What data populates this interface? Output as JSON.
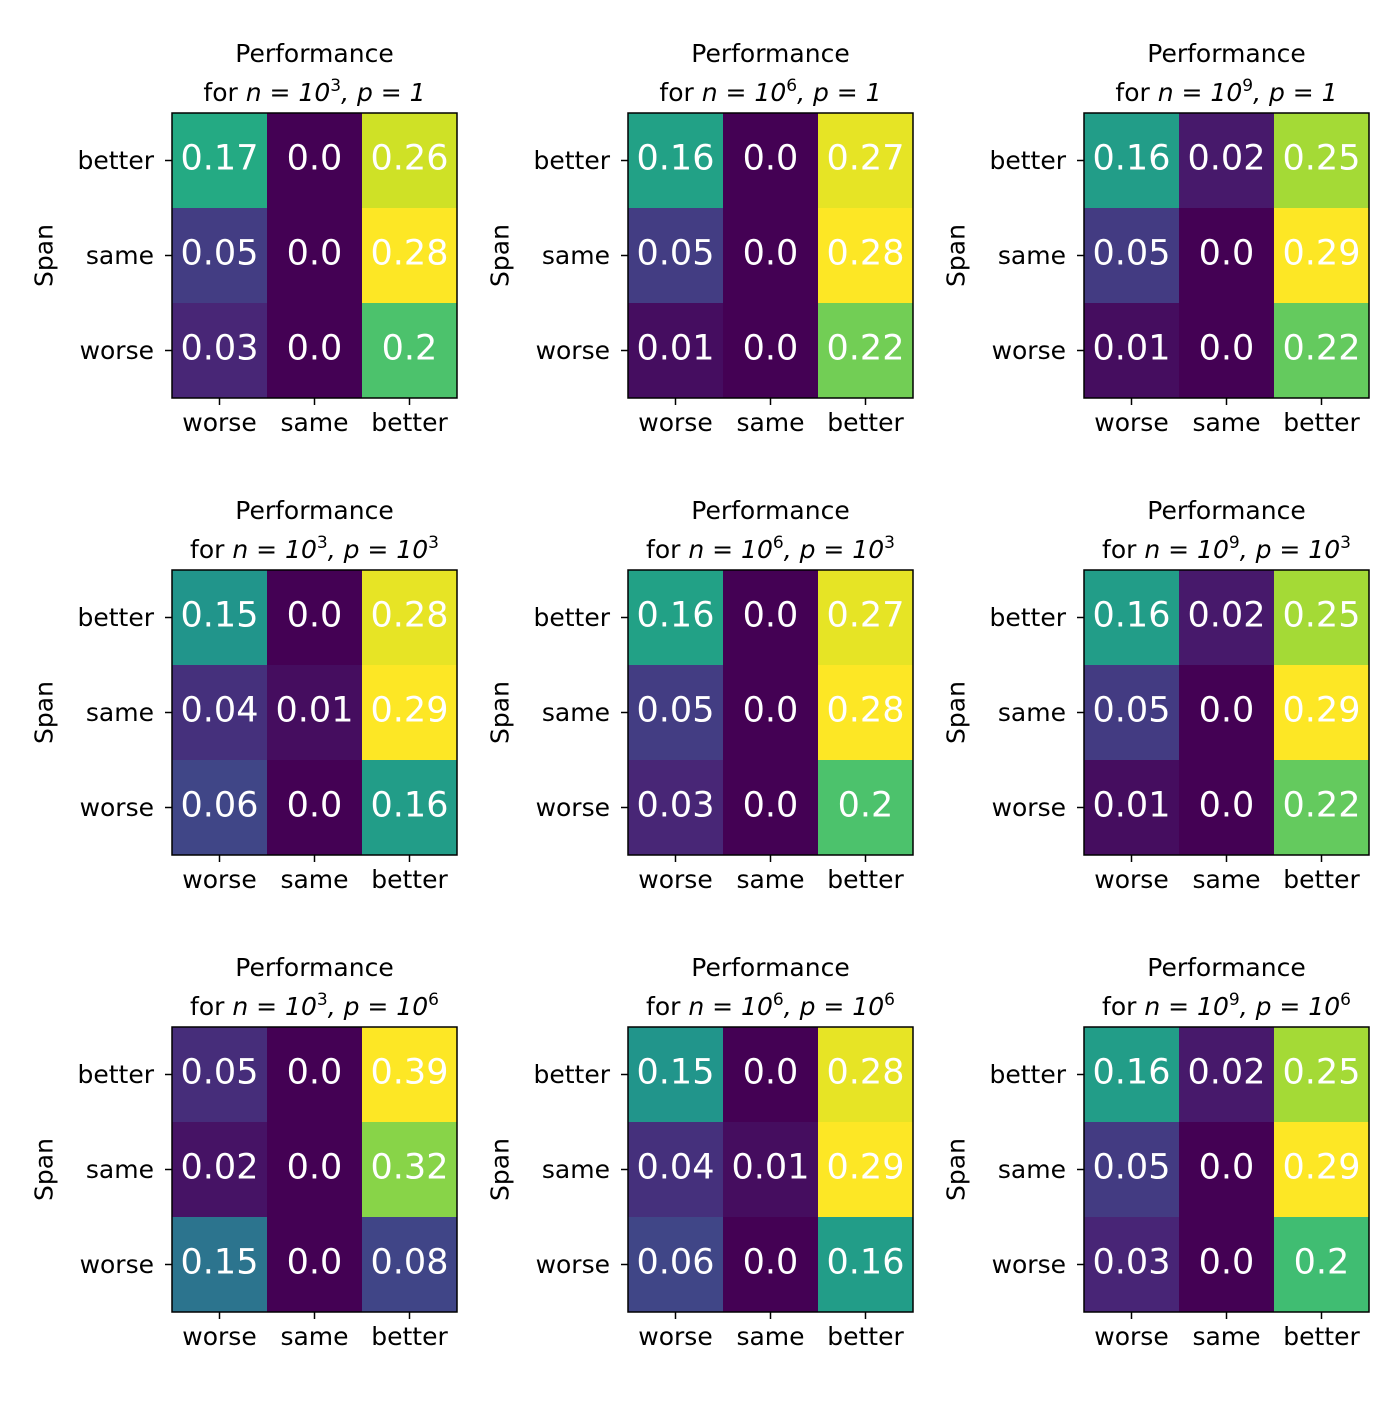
{
  "chart_data": {
    "type": "heatmap",
    "layout": "3x3 grid of heatmaps",
    "colormap": "viridis",
    "x_tick_labels": [
      "worse",
      "same",
      "better"
    ],
    "y_tick_labels": [
      "better",
      "same",
      "worse"
    ],
    "ylabel": "Span",
    "xlabel": "",
    "title_line1": "Performance",
    "panels": [
      {
        "title_prefix": "for ",
        "n_base": "n = 10",
        "n_exp": "3",
        "p_base": ", p = 1",
        "p_exp": "",
        "values": [
          [
            0.17,
            0.0,
            0.26
          ],
          [
            0.05,
            0.0,
            0.28
          ],
          [
            0.03,
            0.0,
            0.2
          ]
        ],
        "labels": [
          [
            "0.17",
            "0.0",
            "0.26"
          ],
          [
            "0.05",
            "0.0",
            "0.28"
          ],
          [
            "0.03",
            "0.0",
            "0.2"
          ]
        ]
      },
      {
        "title_prefix": "for ",
        "n_base": "n = 10",
        "n_exp": "6",
        "p_base": ", p = 1",
        "p_exp": "",
        "values": [
          [
            0.16,
            0.0,
            0.27
          ],
          [
            0.05,
            0.0,
            0.28
          ],
          [
            0.01,
            0.0,
            0.22
          ]
        ],
        "labels": [
          [
            "0.16",
            "0.0",
            "0.27"
          ],
          [
            "0.05",
            "0.0",
            "0.28"
          ],
          [
            "0.01",
            "0.0",
            "0.22"
          ]
        ]
      },
      {
        "title_prefix": "for ",
        "n_base": "n = 10",
        "n_exp": "9",
        "p_base": ", p = 1",
        "p_exp": "",
        "values": [
          [
            0.16,
            0.02,
            0.25
          ],
          [
            0.05,
            0.0,
            0.29
          ],
          [
            0.01,
            0.0,
            0.22
          ]
        ],
        "labels": [
          [
            "0.16",
            "0.02",
            "0.25"
          ],
          [
            "0.05",
            "0.0",
            "0.29"
          ],
          [
            "0.01",
            "0.0",
            "0.22"
          ]
        ]
      },
      {
        "title_prefix": "for ",
        "n_base": "n = 10",
        "n_exp": "3",
        "p_base": ", p = 10",
        "p_exp": "3",
        "values": [
          [
            0.15,
            0.0,
            0.28
          ],
          [
            0.04,
            0.01,
            0.29
          ],
          [
            0.06,
            0.0,
            0.16
          ]
        ],
        "labels": [
          [
            "0.15",
            "0.0",
            "0.28"
          ],
          [
            "0.04",
            "0.01",
            "0.29"
          ],
          [
            "0.06",
            "0.0",
            "0.16"
          ]
        ]
      },
      {
        "title_prefix": "for ",
        "n_base": "n = 10",
        "n_exp": "6",
        "p_base": ", p = 10",
        "p_exp": "3",
        "values": [
          [
            0.16,
            0.0,
            0.27
          ],
          [
            0.05,
            0.0,
            0.28
          ],
          [
            0.03,
            0.0,
            0.2
          ]
        ],
        "labels": [
          [
            "0.16",
            "0.0",
            "0.27"
          ],
          [
            "0.05",
            "0.0",
            "0.28"
          ],
          [
            "0.03",
            "0.0",
            "0.2"
          ]
        ]
      },
      {
        "title_prefix": "for ",
        "n_base": "n = 10",
        "n_exp": "9",
        "p_base": ", p = 10",
        "p_exp": "3",
        "values": [
          [
            0.16,
            0.02,
            0.25
          ],
          [
            0.05,
            0.0,
            0.29
          ],
          [
            0.01,
            0.0,
            0.22
          ]
        ],
        "labels": [
          [
            "0.16",
            "0.02",
            "0.25"
          ],
          [
            "0.05",
            "0.0",
            "0.29"
          ],
          [
            "0.01",
            "0.0",
            "0.22"
          ]
        ]
      },
      {
        "title_prefix": "for ",
        "n_base": "n = 10",
        "n_exp": "3",
        "p_base": ", p = 10",
        "p_exp": "6",
        "values": [
          [
            0.05,
            0.0,
            0.39
          ],
          [
            0.02,
            0.0,
            0.32
          ],
          [
            0.15,
            0.0,
            0.08
          ]
        ],
        "labels": [
          [
            "0.05",
            "0.0",
            "0.39"
          ],
          [
            "0.02",
            "0.0",
            "0.32"
          ],
          [
            "0.15",
            "0.0",
            "0.08"
          ]
        ]
      },
      {
        "title_prefix": "for ",
        "n_base": "n = 10",
        "n_exp": "6",
        "p_base": ", p = 10",
        "p_exp": "6",
        "values": [
          [
            0.15,
            0.0,
            0.28
          ],
          [
            0.04,
            0.01,
            0.29
          ],
          [
            0.06,
            0.0,
            0.16
          ]
        ],
        "labels": [
          [
            "0.15",
            "0.0",
            "0.28"
          ],
          [
            "0.04",
            "0.01",
            "0.29"
          ],
          [
            "0.06",
            "0.0",
            "0.16"
          ]
        ]
      },
      {
        "title_prefix": "for ",
        "n_base": "n = 10",
        "n_exp": "9",
        "p_base": ", p = 10",
        "p_exp": "6",
        "values": [
          [
            0.16,
            0.02,
            0.25
          ],
          [
            0.05,
            0.0,
            0.29
          ],
          [
            0.03,
            0.0,
            0.2
          ]
        ],
        "labels": [
          [
            "0.16",
            "0.02",
            "0.25"
          ],
          [
            "0.05",
            "0.0",
            "0.29"
          ],
          [
            "0.03",
            "0.0",
            "0.2"
          ]
        ]
      }
    ]
  }
}
